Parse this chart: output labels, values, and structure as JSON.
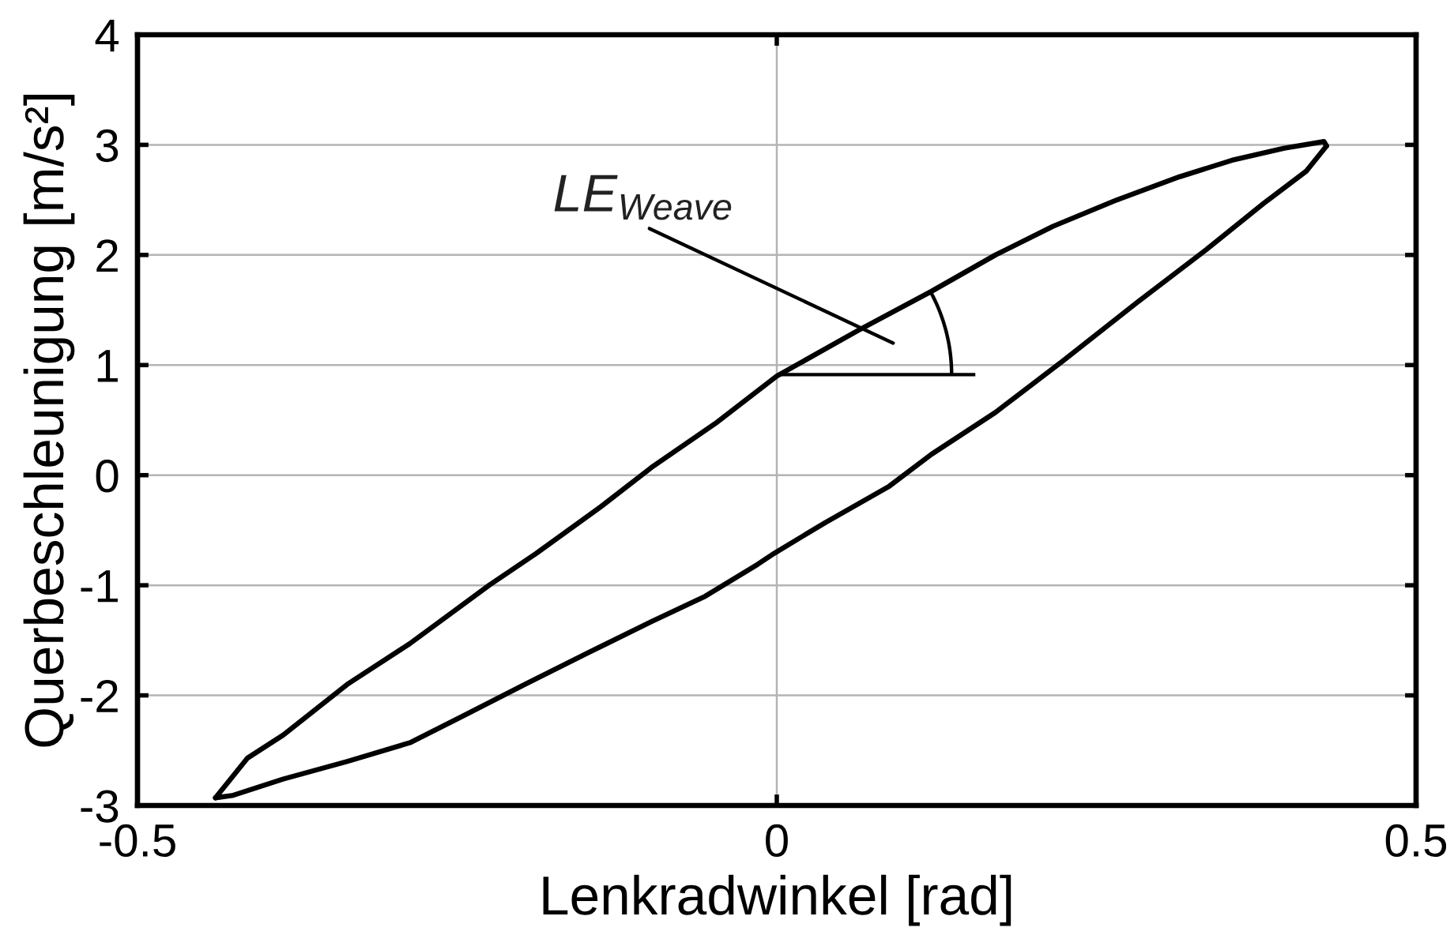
{
  "chart_data": {
    "type": "line",
    "xlabel": "Lenkradwinkel [rad]",
    "ylabel": "Querbeschleunigung [m/s²]",
    "xlim": [
      -0.5,
      0.5
    ],
    "ylim": [
      -3,
      4
    ],
    "xticks": [
      -0.5,
      0,
      0.5
    ],
    "yticks": [
      -3,
      -2,
      -1,
      0,
      1,
      2,
      3,
      4
    ],
    "grid": true,
    "line_style": "solid",
    "annotations": [
      "LE$_{Weave}$"
    ],
    "series": [
      {
        "color": "#000000",
        "x": [
          -0.439,
          -0.414,
          -0.386,
          -0.336,
          -0.287,
          -0.225,
          -0.188,
          -0.138,
          -0.098,
          -0.048,
          0.0,
          0.063,
          0.121,
          0.171,
          0.216,
          0.266,
          0.315,
          0.356,
          0.397,
          0.428,
          0.43
        ],
        "values": [
          -2.93,
          -2.57,
          -2.36,
          -1.9,
          -1.53,
          -1.0,
          -0.71,
          -0.29,
          0.07,
          0.47,
          0.9,
          1.31,
          1.67,
          2.0,
          2.26,
          2.5,
          2.71,
          2.86,
          2.97,
          3.03,
          2.99
        ]
      },
      {
        "color": "#000000",
        "x": [
          0.43,
          0.414,
          0.381,
          0.335,
          0.282,
          0.224,
          0.171,
          0.121,
          0.088,
          0.038,
          -0.002,
          -0.015,
          -0.056,
          -0.098,
          -0.147,
          -0.197,
          -0.246,
          -0.287,
          -0.336,
          -0.386,
          -0.426,
          -0.439
        ],
        "values": [
          2.99,
          2.76,
          2.47,
          2.04,
          1.57,
          1.04,
          0.57,
          0.19,
          -0.1,
          -0.43,
          -0.71,
          -0.81,
          -1.1,
          -1.33,
          -1.61,
          -1.9,
          -2.19,
          -2.43,
          -2.6,
          -2.76,
          -2.91,
          -2.93
        ]
      }
    ]
  }
}
